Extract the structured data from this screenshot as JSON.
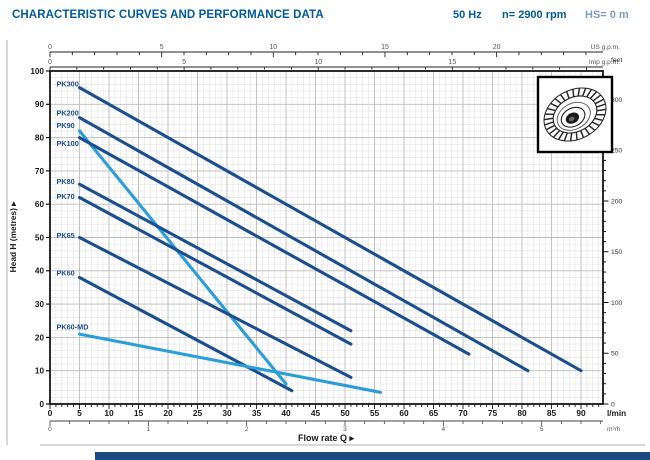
{
  "header": {
    "title": "CHARACTERISTIC CURVES AND PERFORMANCE DATA",
    "frequency": "50 Hz",
    "speed": "n= 2900 rpm",
    "suction_head": "HS= 0 m"
  },
  "icons": {
    "right_arrow": "▸",
    "up_arrow": "▸"
  },
  "chart_data": {
    "type": "line",
    "xlabel": "Flow rate Q",
    "ylabel": "Head H (metres)",
    "grid": "on",
    "x_range_lmin": [
      0,
      93
    ],
    "y_range_m": [
      0,
      100
    ],
    "axes": {
      "lmin": {
        "unit_label": "l/min",
        "labels": [
          0,
          5,
          10,
          15,
          20,
          25,
          30,
          35,
          40,
          45,
          50,
          55,
          60,
          65,
          70,
          75,
          80,
          85,
          90
        ],
        "minor_step": 1
      },
      "m3h": {
        "unit_label": "m³/h",
        "labels": [
          0,
          1,
          2,
          3,
          4,
          5
        ],
        "lmin_per_unit": 16.667,
        "minor_step": 0.2
      },
      "usgpm": {
        "unit_label": "US g.p.m.",
        "labels": [
          0,
          5,
          10,
          15,
          20
        ],
        "lmin_per_unit": 3.785,
        "minor_step": 1,
        "tick_max": 24
      },
      "impgpm": {
        "unit_label": "Imp g.p.m.",
        "labels": [
          0,
          5,
          10,
          15
        ],
        "lmin_per_unit": 4.546,
        "minor_step": 1,
        "tick_max": 20
      },
      "metres": {
        "labels": [
          0,
          10,
          20,
          30,
          40,
          50,
          60,
          70,
          80,
          90,
          100
        ],
        "minor_step": 2
      },
      "feet": {
        "unit_label": "feet",
        "labels": [
          0,
          50,
          100,
          150,
          200,
          250,
          300
        ],
        "m_per_unit": 0.3048,
        "minor_step": 10,
        "tick_max": 320
      }
    },
    "series": [
      {
        "name": "PK300",
        "color": "#1b4e8e",
        "points": [
          [
            5,
            95
          ],
          [
            90,
            10
          ]
        ],
        "label_pos": [
          1.1,
          96.2
        ]
      },
      {
        "name": "PK200",
        "color": "#1b4e8e",
        "points": [
          [
            5,
            86
          ],
          [
            81,
            10
          ]
        ],
        "label_pos": [
          1.1,
          87.4
        ]
      },
      {
        "name": "PK90",
        "color": "#2b9ed9",
        "points": [
          [
            5,
            82
          ],
          [
            40,
            6
          ]
        ],
        "label_pos": [
          1.1,
          83.6
        ]
      },
      {
        "name": "PK100",
        "color": "#1b4e8e",
        "points": [
          [
            5,
            80
          ],
          [
            71,
            15
          ]
        ],
        "label_pos": [
          1.1,
          78.2
        ]
      },
      {
        "name": "PK80",
        "color": "#1b4e8e",
        "points": [
          [
            5,
            66
          ],
          [
            51,
            22
          ]
        ],
        "label_pos": [
          1.1,
          66.8
        ]
      },
      {
        "name": "PK70",
        "color": "#1b4e8e",
        "points": [
          [
            5,
            62
          ],
          [
            51,
            18
          ]
        ],
        "label_pos": [
          1.1,
          62.4
        ]
      },
      {
        "name": "PK65",
        "color": "#1b4e8e",
        "points": [
          [
            5,
            50
          ],
          [
            51,
            8
          ]
        ],
        "label_pos": [
          1.1,
          50.6
        ]
      },
      {
        "name": "PK60",
        "color": "#1b4e8e",
        "points": [
          [
            5,
            38
          ],
          [
            41,
            4
          ]
        ],
        "label_pos": [
          1.1,
          39.4
        ]
      },
      {
        "name": "PK60-MD",
        "color": "#2b9ed9",
        "points": [
          [
            5,
            21
          ],
          [
            56,
            3.5
          ]
        ],
        "label_pos": [
          1.1,
          23.2
        ]
      }
    ],
    "legend": "curve labels inline at left ends"
  },
  "inset": {
    "name": "impeller-illustration"
  },
  "colors": {
    "accent_blue": "#005a9c",
    "muted_blue": "#7d9cc3",
    "curve_dark": "#1b4e8e",
    "curve_light": "#2b9ed9",
    "grid_minor": "#e0e0e0",
    "grid_major": "#bdbdbd",
    "axis_black": "#1a1a1a",
    "ruler_text": "#555555",
    "table_bar": "#1c4a80"
  }
}
